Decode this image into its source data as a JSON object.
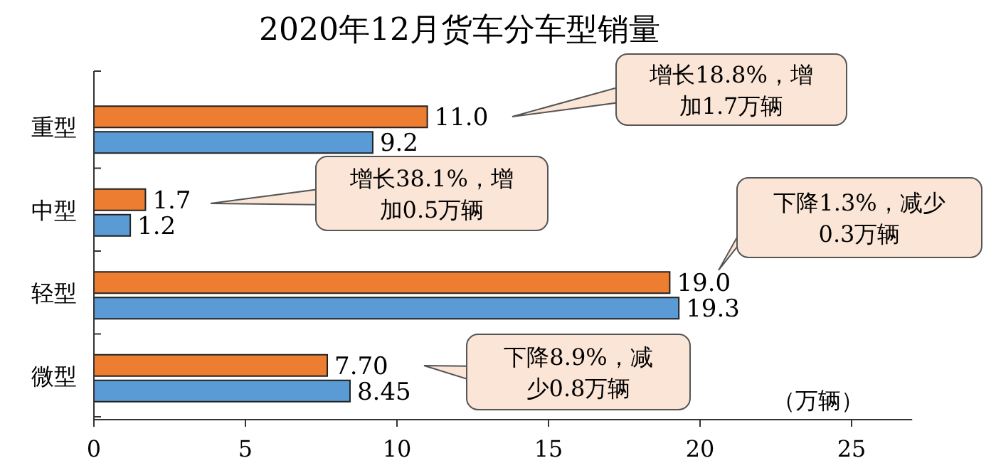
{
  "chart_data": {
    "type": "bar",
    "orientation": "horizontal",
    "title": "2020年12月货车分车型销量",
    "xlabel": "（万辆）",
    "categories": [
      "重型",
      "中型",
      "轻型",
      "微型"
    ],
    "series": [
      {
        "color": "#ed7d31",
        "values": [
          11.0,
          1.7,
          19.0,
          7.7
        ],
        "value_labels": [
          "11.0",
          "1.7",
          "19.0",
          "7.70"
        ]
      },
      {
        "color": "#5b9bd5",
        "values": [
          9.2,
          1.2,
          19.3,
          8.45
        ],
        "value_labels": [
          "9.2",
          "1.2",
          "19.3",
          "8.45"
        ]
      }
    ],
    "xlim": [
      0,
      27
    ],
    "xticks": [
      0,
      5,
      10,
      15,
      20,
      25
    ],
    "annotations": [
      "增长18.8%，增加1.7万辆",
      "增长38.1%，增加0.5万辆",
      "下降1.3%，减少0.3万辆",
      "下降8.9%，减少0.8万辆"
    ]
  }
}
